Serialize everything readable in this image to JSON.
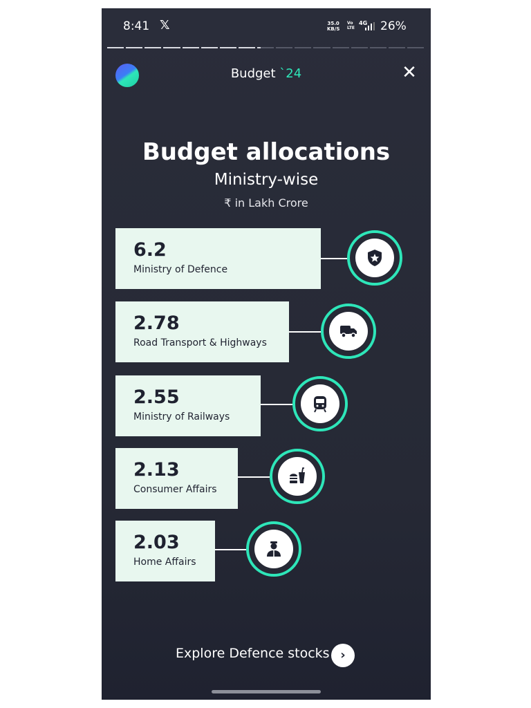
{
  "status_bar": {
    "time": "8:41",
    "notification_icon": "x-logo",
    "net_speed_value": "35.0",
    "net_speed_unit": "KB/S",
    "volte_top": "Vo",
    "volte_bottom": "LTE",
    "signal_label": "4G",
    "battery": "26%"
  },
  "story_progress": {
    "total_segments": 17,
    "completed_segments": 8
  },
  "header": {
    "title_prefix": "Budget ",
    "title_accent": "`24",
    "close_icon": "close-icon"
  },
  "content": {
    "title": "Budget allocations",
    "subtitle": "Ministry-wise",
    "unit": "₹ in Lakh Crore",
    "allocations": [
      {
        "value": "6.2",
        "label": "Ministry of Defence",
        "icon": "shield-star-icon"
      },
      {
        "value": "2.78",
        "label": "Road Transport & Highways",
        "icon": "truck-icon"
      },
      {
        "value": "2.55",
        "label": "Ministry of Railways",
        "icon": "train-icon"
      },
      {
        "value": "2.13",
        "label": "Consumer Affairs",
        "icon": "food-drink-icon"
      },
      {
        "value": "2.03",
        "label": "Home Affairs",
        "icon": "officer-icon"
      }
    ]
  },
  "footer": {
    "explore_label": "Explore Defence stocks",
    "explore_icon": "chevron-right-icon"
  },
  "colors": {
    "background": "#262935",
    "accent": "#2ee6b9",
    "card": "#e8f7ef"
  }
}
